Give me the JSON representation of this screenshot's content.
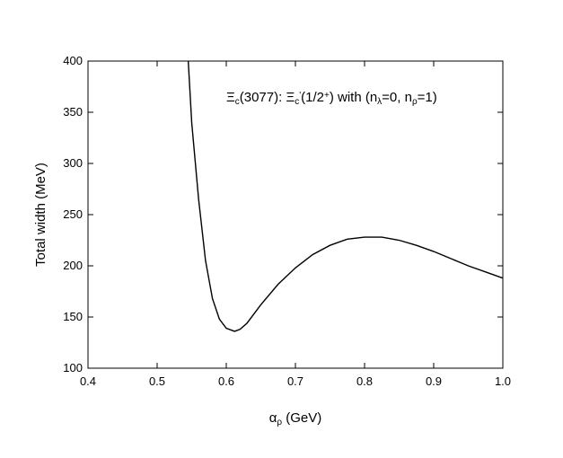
{
  "chart_data": {
    "type": "line",
    "annotation": [
      {
        "text": "Ξ",
        "pos": "base"
      },
      {
        "text": "c",
        "pos": "sub"
      },
      {
        "text": "(3077): Ξ",
        "pos": "base"
      },
      {
        "text": "c",
        "pos": "sub"
      },
      {
        "text": "'",
        "pos": "sup"
      },
      {
        "text": "(1/2",
        "pos": "base"
      },
      {
        "text": "+",
        "pos": "sup"
      },
      {
        "text": ") with (n",
        "pos": "base"
      },
      {
        "text": "λ",
        "pos": "sub"
      },
      {
        "text": "=0, n",
        "pos": "base"
      },
      {
        "text": "ρ",
        "pos": "sub"
      },
      {
        "text": "=1)",
        "pos": "base"
      }
    ],
    "x_label": [
      {
        "text": "α",
        "pos": "base"
      },
      {
        "text": "ρ",
        "pos": "sub"
      },
      {
        "text": " (GeV)",
        "pos": "base"
      }
    ],
    "y_label": "Total width (MeV)",
    "x": [
      0.545,
      0.55,
      0.56,
      0.57,
      0.58,
      0.59,
      0.6,
      0.612,
      0.62,
      0.63,
      0.65,
      0.675,
      0.7,
      0.725,
      0.75,
      0.775,
      0.8,
      0.825,
      0.85,
      0.875,
      0.9,
      0.925,
      0.95,
      0.975,
      1.0
    ],
    "series": [
      {
        "color": "#000000",
        "values": [
          400,
          340,
          265,
          205,
          168,
          148,
          139,
          136,
          138,
          144,
          162,
          182,
          198,
          211,
          220,
          226,
          228,
          228,
          225,
          220,
          214,
          207,
          200,
          194,
          188
        ]
      }
    ],
    "xlim": [
      0.4,
      1.0
    ],
    "xticks": [
      0.4,
      0.5,
      0.6,
      0.7,
      0.8,
      0.9,
      {
        "value": 1.0,
        "label": "1.0"
      }
    ],
    "ylim": [
      100,
      400
    ],
    "yticks": [
      100,
      150,
      200,
      250,
      300,
      350,
      400
    ]
  }
}
